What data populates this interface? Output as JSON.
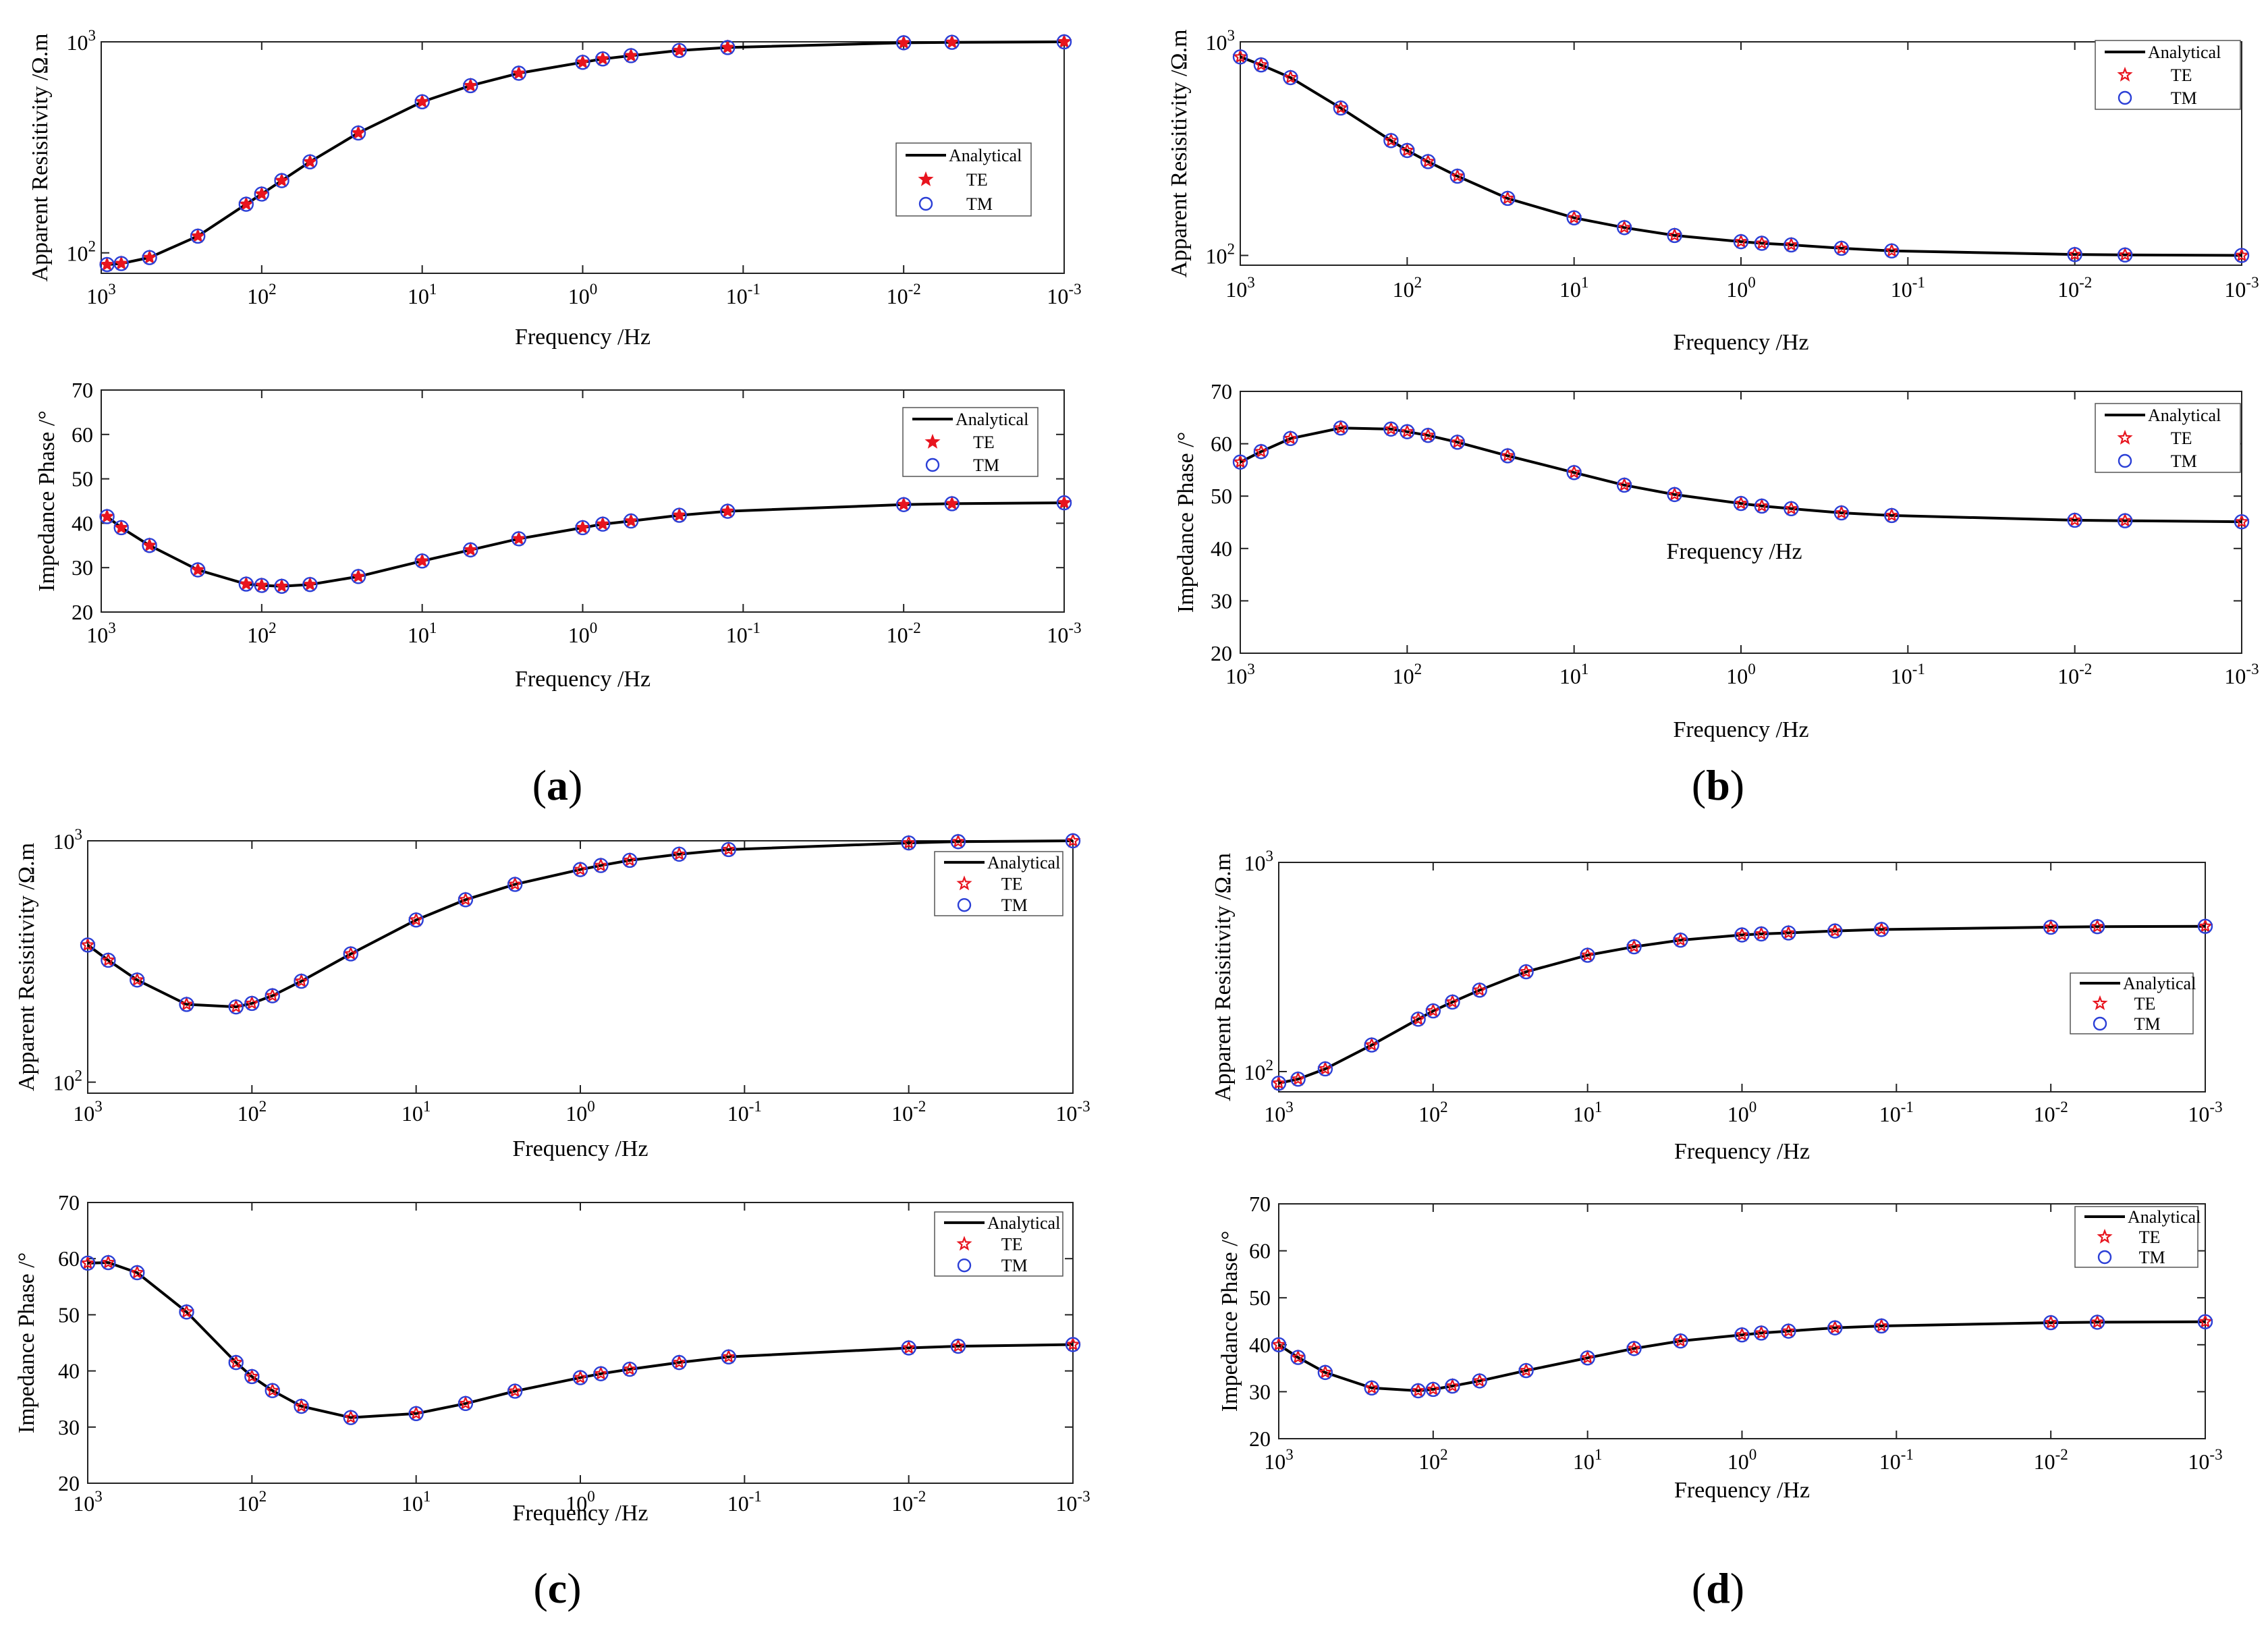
{
  "figure": {
    "panel_labels": [
      "(a)",
      "(b)",
      "(c)",
      "(d)"
    ]
  },
  "colors": {
    "analytical": "#000000",
    "te": "#e8141e",
    "tm": "#2b3fd6"
  },
  "chart_data": [
    {
      "panel": "a",
      "kind": "resistivity",
      "type": "line",
      "xlabel": "Frequency /Hz",
      "ylabel": "Apparent Resisitivity /Ω.m",
      "x_scale": "log-reversed",
      "xlim": [
        1000,
        0.001
      ],
      "y_scale": "log",
      "ylim": [
        80,
        1000
      ],
      "x_tick_labels": [
        "10",
        "10",
        "10",
        "10",
        "10",
        "10",
        "10"
      ],
      "x_tick_exponents": [
        "3",
        "2",
        "1",
        "0",
        "-1",
        "-2",
        "-3"
      ],
      "y_tick_labels": [
        "10",
        "10"
      ],
      "y_tick_exponents": [
        "2",
        "3"
      ],
      "legend": [
        "Analytical",
        "TE",
        "TM"
      ],
      "te_marker": "filled-star",
      "x": [
        920,
        750,
        500,
        250,
        125,
        100,
        75,
        50,
        25,
        10,
        5,
        2.5,
        1,
        0.75,
        0.5,
        0.25,
        0.125,
        0.01,
        0.005,
        0.001
      ],
      "series": [
        {
          "name": "Analytical",
          "values": [
            88,
            89,
            95,
            120,
            170,
            190,
            220,
            270,
            370,
            520,
            620,
            710,
            800,
            830,
            860,
            910,
            940,
            990,
            995,
            1000
          ]
        },
        {
          "name": "TE",
          "values": [
            88,
            89,
            95,
            120,
            170,
            190,
            220,
            270,
            370,
            520,
            620,
            710,
            800,
            830,
            860,
            910,
            940,
            990,
            995,
            1000
          ]
        },
        {
          "name": "TM",
          "values": [
            88,
            89,
            95,
            120,
            170,
            190,
            220,
            270,
            370,
            520,
            620,
            710,
            800,
            830,
            860,
            910,
            940,
            990,
            995,
            1000
          ]
        }
      ]
    },
    {
      "panel": "a",
      "kind": "phase",
      "type": "line",
      "xlabel": "Frequency /Hz",
      "ylabel": "Impedance Phase /°",
      "x_scale": "log-reversed",
      "xlim": [
        1000,
        0.001
      ],
      "y_scale": "linear",
      "ylim": [
        20,
        70
      ],
      "x_tick_labels": [
        "10",
        "10",
        "10",
        "10",
        "10",
        "10",
        "10"
      ],
      "x_tick_exponents": [
        "3",
        "2",
        "1",
        "0",
        "-1",
        "-2",
        "-3"
      ],
      "y_tick_labels": [
        "20",
        "30",
        "40",
        "50",
        "60",
        "70"
      ],
      "legend": [
        "Analytical",
        "TE",
        "TM"
      ],
      "te_marker": "filled-star",
      "x": [
        920,
        750,
        500,
        250,
        125,
        100,
        75,
        50,
        25,
        10,
        5,
        2.5,
        1,
        0.75,
        0.5,
        0.25,
        0.125,
        0.01,
        0.005,
        0.001
      ],
      "series": [
        {
          "name": "Analytical",
          "values": [
            41.5,
            39,
            35,
            29.5,
            26.3,
            26,
            25.8,
            26.2,
            28,
            31.5,
            34,
            36.5,
            39,
            39.8,
            40.5,
            41.8,
            42.7,
            44.2,
            44.4,
            44.6
          ]
        },
        {
          "name": "TE",
          "values": [
            41.5,
            39,
            35,
            29.5,
            26.3,
            26,
            25.8,
            26.2,
            28,
            31.5,
            34,
            36.5,
            39,
            39.8,
            40.5,
            41.8,
            42.7,
            44.2,
            44.4,
            44.6
          ]
        },
        {
          "name": "TM",
          "values": [
            41.5,
            39,
            35,
            29.5,
            26.3,
            26,
            25.8,
            26.2,
            28,
            31.5,
            34,
            36.5,
            39,
            39.8,
            40.5,
            41.8,
            42.7,
            44.2,
            44.4,
            44.6
          ]
        }
      ]
    },
    {
      "panel": "b",
      "kind": "resistivity",
      "type": "line",
      "xlabel": "Frequency /Hz",
      "ylabel": "Apparent Resisitivity /Ω.m",
      "x_scale": "log-reversed",
      "xlim": [
        1000,
        0.001
      ],
      "y_scale": "log",
      "ylim": [
        90,
        1000
      ],
      "x_tick_labels": [
        "10",
        "10",
        "10",
        "10",
        "10",
        "10",
        "10"
      ],
      "x_tick_exponents": [
        "3",
        "2",
        "1",
        "0",
        "-1",
        "-2",
        "-3"
      ],
      "y_tick_labels": [
        "10",
        "10"
      ],
      "y_tick_exponents": [
        "2",
        "3"
      ],
      "legend": [
        "Analytical",
        "TE",
        "TM"
      ],
      "te_marker": "open-star",
      "x": [
        1000,
        750,
        500,
        250,
        125,
        100,
        75,
        50,
        25,
        10,
        5,
        2.5,
        1,
        0.75,
        0.5,
        0.25,
        0.125,
        0.01,
        0.005,
        0.001
      ],
      "series": [
        {
          "name": "Analytical",
          "values": [
            850,
            780,
            680,
            490,
            345,
            310,
            275,
            235,
            185,
            150,
            135,
            124,
            116,
            114,
            112,
            108,
            105,
            101,
            100.5,
            100
          ]
        },
        {
          "name": "TE",
          "values": [
            850,
            780,
            680,
            490,
            345,
            310,
            275,
            235,
            185,
            150,
            135,
            124,
            116,
            114,
            112,
            108,
            105,
            101,
            100.5,
            100
          ]
        },
        {
          "name": "TM",
          "values": [
            850,
            780,
            680,
            490,
            345,
            310,
            275,
            235,
            185,
            150,
            135,
            124,
            116,
            114,
            112,
            108,
            105,
            101,
            100.5,
            100
          ]
        }
      ]
    },
    {
      "panel": "b",
      "kind": "phase",
      "type": "line",
      "xlabel": "Frequency /Hz",
      "ylabel": "Impedance Phase /°",
      "x_scale": "log-reversed",
      "xlim": [
        1000,
        0.001
      ],
      "y_scale": "linear",
      "ylim": [
        20,
        70
      ],
      "x_tick_labels": [
        "10",
        "10",
        "10",
        "10",
        "10",
        "10",
        "10"
      ],
      "x_tick_exponents": [
        "3",
        "2",
        "1",
        "0",
        "-1",
        "-2",
        "-3"
      ],
      "y_tick_labels": [
        "20",
        "30",
        "40",
        "50",
        "60",
        "70"
      ],
      "legend": [
        "Analytical",
        "TE",
        "TM"
      ],
      "te_marker": "open-star",
      "annotation": "Frequency /Hz",
      "x": [
        1000,
        750,
        500,
        250,
        125,
        100,
        75,
        50,
        25,
        10,
        5,
        2.5,
        1,
        0.75,
        0.5,
        0.25,
        0.125,
        0.01,
        0.005,
        0.001
      ],
      "series": [
        {
          "name": "Analytical",
          "values": [
            56.5,
            58.5,
            61,
            63,
            62.8,
            62.3,
            61.6,
            60.3,
            57.7,
            54.5,
            52.1,
            50.3,
            48.6,
            48.1,
            47.6,
            46.8,
            46.3,
            45.4,
            45.3,
            45.1
          ]
        },
        {
          "name": "TE",
          "values": [
            56.5,
            58.5,
            61,
            63,
            62.8,
            62.3,
            61.6,
            60.3,
            57.7,
            54.5,
            52.1,
            50.3,
            48.6,
            48.1,
            47.6,
            46.8,
            46.3,
            45.4,
            45.3,
            45.1
          ]
        },
        {
          "name": "TM",
          "values": [
            56.5,
            58.5,
            61,
            63,
            62.8,
            62.3,
            61.6,
            60.3,
            57.7,
            54.5,
            52.1,
            50.3,
            48.6,
            48.1,
            47.6,
            46.8,
            46.3,
            45.4,
            45.3,
            45.1
          ]
        }
      ]
    },
    {
      "panel": "c",
      "kind": "resistivity",
      "type": "line",
      "xlabel": "Frequency /Hz",
      "ylabel": "Apparent Resisitivity /Ω.m",
      "x_scale": "log-reversed",
      "xlim": [
        1000,
        0.001
      ],
      "y_scale": "log",
      "ylim": [
        90,
        1000
      ],
      "x_tick_labels": [
        "10",
        "10",
        "10",
        "10",
        "10",
        "10",
        "10"
      ],
      "x_tick_exponents": [
        "3",
        "2",
        "1",
        "0",
        "-1",
        "-2",
        "-3"
      ],
      "y_tick_labels": [
        "10",
        "10"
      ],
      "y_tick_exponents": [
        "2",
        "3"
      ],
      "legend": [
        "Analytical",
        "TE",
        "TM"
      ],
      "te_marker": "open-star",
      "x": [
        1000,
        750,
        500,
        250,
        125,
        100,
        75,
        50,
        25,
        10,
        5,
        2.5,
        1,
        0.75,
        0.5,
        0.25,
        0.125,
        0.01,
        0.005,
        0.001
      ],
      "series": [
        {
          "name": "Analytical",
          "values": [
            370,
            320,
            265,
            210,
            205,
            212,
            228,
            262,
            340,
            470,
            570,
            660,
            760,
            790,
            830,
            880,
            920,
            980,
            992,
            1000
          ]
        },
        {
          "name": "TE",
          "values": [
            370,
            320,
            265,
            210,
            205,
            212,
            228,
            262,
            340,
            470,
            570,
            660,
            760,
            790,
            830,
            880,
            920,
            980,
            992,
            1000
          ]
        },
        {
          "name": "TM",
          "values": [
            370,
            320,
            265,
            210,
            205,
            212,
            228,
            262,
            340,
            470,
            570,
            660,
            760,
            790,
            830,
            880,
            920,
            980,
            992,
            1000
          ]
        }
      ]
    },
    {
      "panel": "c",
      "kind": "phase",
      "type": "line",
      "xlabel": "Frequency /Hz",
      "ylabel": "Impedance Phase /°",
      "x_scale": "log-reversed",
      "xlim": [
        1000,
        0.001
      ],
      "y_scale": "linear",
      "ylim": [
        20,
        70
      ],
      "x_tick_labels": [
        "10",
        "10",
        "10",
        "10",
        "10",
        "10",
        "10"
      ],
      "x_tick_exponents": [
        "3",
        "2",
        "1",
        "0",
        "-1",
        "-2",
        "-3"
      ],
      "y_tick_labels": [
        "20",
        "30",
        "40",
        "50",
        "60",
        "70"
      ],
      "legend": [
        "Analytical",
        "TE",
        "TM"
      ],
      "te_marker": "open-star",
      "x": [
        1000,
        750,
        500,
        250,
        125,
        100,
        75,
        50,
        25,
        10,
        5,
        2.5,
        1,
        0.75,
        0.5,
        0.25,
        0.125,
        0.01,
        0.005,
        0.001
      ],
      "series": [
        {
          "name": "Analytical",
          "values": [
            59.2,
            59.3,
            57.5,
            50.5,
            41.5,
            39,
            36.5,
            33.7,
            31.7,
            32.4,
            34.2,
            36.4,
            38.8,
            39.5,
            40.3,
            41.5,
            42.5,
            44.1,
            44.4,
            44.7
          ]
        },
        {
          "name": "TE",
          "values": [
            59.2,
            59.3,
            57.5,
            50.5,
            41.5,
            39,
            36.5,
            33.7,
            31.7,
            32.4,
            34.2,
            36.4,
            38.8,
            39.5,
            40.3,
            41.5,
            42.5,
            44.1,
            44.4,
            44.7
          ]
        },
        {
          "name": "TM",
          "values": [
            59.2,
            59.3,
            57.5,
            50.5,
            41.5,
            39,
            36.5,
            33.7,
            31.7,
            32.4,
            34.2,
            36.4,
            38.8,
            39.5,
            40.3,
            41.5,
            42.5,
            44.1,
            44.4,
            44.7
          ]
        }
      ]
    },
    {
      "panel": "d",
      "kind": "resistivity",
      "type": "line",
      "xlabel": "Frequency /Hz",
      "ylabel": "Apparent Resisitivity /Ω.m",
      "x_scale": "log-reversed",
      "xlim": [
        1000,
        0.001
      ],
      "y_scale": "log",
      "ylim": [
        80,
        1000
      ],
      "x_tick_labels": [
        "10",
        "10",
        "10",
        "10",
        "10",
        "10",
        "10"
      ],
      "x_tick_exponents": [
        "3",
        "2",
        "1",
        "0",
        "-1",
        "-2",
        "-3"
      ],
      "y_tick_labels": [
        "10",
        "10"
      ],
      "y_tick_exponents": [
        "2",
        "3"
      ],
      "legend": [
        "Analytical",
        "TE",
        "TM"
      ],
      "te_marker": "open-star",
      "x": [
        1000,
        750,
        500,
        250,
        125,
        100,
        75,
        50,
        25,
        10,
        5,
        2.5,
        1,
        0.75,
        0.5,
        0.25,
        0.125,
        0.01,
        0.005,
        0.001
      ],
      "series": [
        {
          "name": "Analytical",
          "values": [
            88,
            92,
            103,
            134,
            178,
            195,
            215,
            245,
            300,
            360,
            395,
            425,
            450,
            455,
            460,
            470,
            478,
            490,
            493,
            495
          ]
        },
        {
          "name": "TE",
          "values": [
            88,
            92,
            103,
            134,
            178,
            195,
            215,
            245,
            300,
            360,
            395,
            425,
            450,
            455,
            460,
            470,
            478,
            490,
            493,
            495
          ]
        },
        {
          "name": "TM",
          "values": [
            88,
            92,
            103,
            134,
            178,
            195,
            215,
            245,
            300,
            360,
            395,
            425,
            450,
            455,
            460,
            470,
            478,
            490,
            493,
            495
          ]
        }
      ]
    },
    {
      "panel": "d",
      "kind": "phase",
      "type": "line",
      "xlabel": "Frequency /Hz",
      "ylabel": "Impedance Phase /°",
      "x_scale": "log-reversed",
      "xlim": [
        1000,
        0.001
      ],
      "y_scale": "linear",
      "ylim": [
        20,
        70
      ],
      "x_tick_labels": [
        "10",
        "10",
        "10",
        "10",
        "10",
        "10",
        "10"
      ],
      "x_tick_exponents": [
        "3",
        "2",
        "1",
        "0",
        "-1",
        "-2",
        "-3"
      ],
      "y_tick_labels": [
        "20",
        "30",
        "40",
        "50",
        "60",
        "70"
      ],
      "legend": [
        "Analytical",
        "TE",
        "TM"
      ],
      "te_marker": "open-star",
      "x": [
        1000,
        750,
        500,
        250,
        125,
        100,
        75,
        50,
        25,
        10,
        5,
        2.5,
        1,
        0.75,
        0.5,
        0.25,
        0.125,
        0.01,
        0.005,
        0.001
      ],
      "series": [
        {
          "name": "Analytical",
          "values": [
            40,
            37.3,
            34.1,
            30.8,
            30.2,
            30.5,
            31.2,
            32.3,
            34.5,
            37.2,
            39.2,
            40.8,
            42.1,
            42.5,
            42.9,
            43.6,
            44,
            44.7,
            44.8,
            44.9
          ]
        },
        {
          "name": "TE",
          "values": [
            40,
            37.3,
            34.1,
            30.8,
            30.2,
            30.5,
            31.2,
            32.3,
            34.5,
            37.2,
            39.2,
            40.8,
            42.1,
            42.5,
            42.9,
            43.6,
            44,
            44.7,
            44.8,
            44.9
          ]
        },
        {
          "name": "TM",
          "values": [
            40,
            37.3,
            34.1,
            30.8,
            30.2,
            30.5,
            31.2,
            32.3,
            34.5,
            37.2,
            39.2,
            40.8,
            42.1,
            42.5,
            42.9,
            43.6,
            44,
            44.7,
            44.8,
            44.9
          ]
        }
      ]
    }
  ]
}
